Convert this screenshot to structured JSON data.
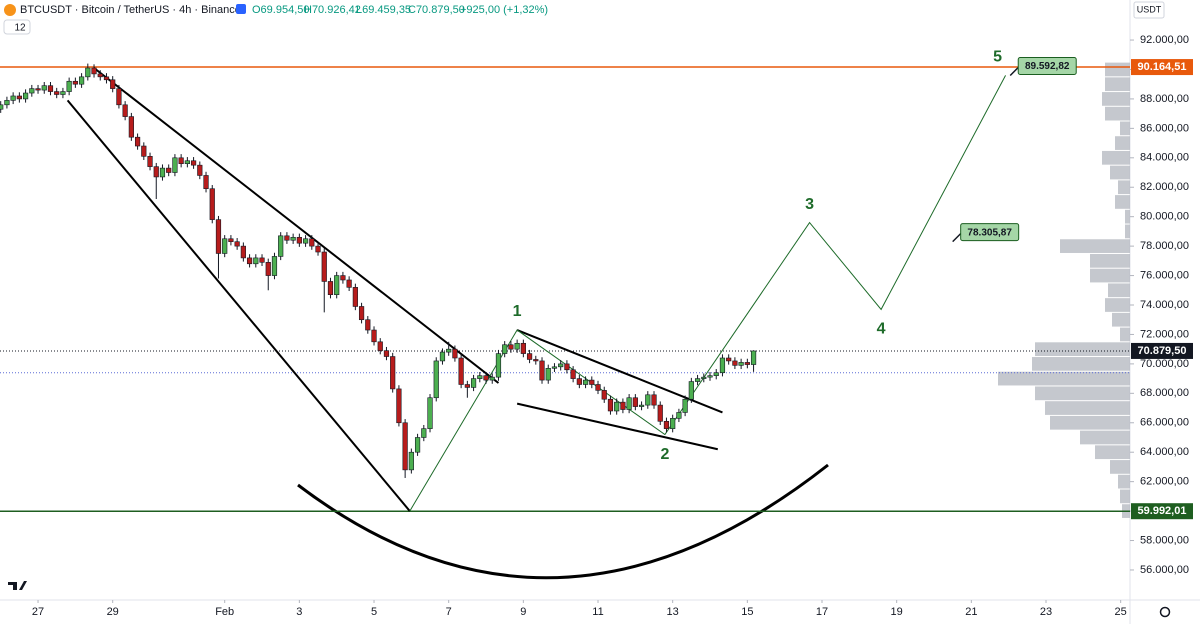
{
  "chart_data": {
    "type": "candlestick",
    "title": "BTCUSDT · Bitcoin / TetherUS · 4h · Binance",
    "ohlc_labels": [
      "O69.954,50",
      "H70.926,42",
      "L69.459,35",
      "C70.879,50"
    ],
    "change_label": "+925,00 (+1,32%)",
    "badge": "12",
    "currency": "USDT",
    "up_color": "#4caf50",
    "down_color": "#b71c1c",
    "x": [
      0,
      4,
      8,
      12,
      16,
      20,
      24,
      28,
      32,
      36,
      40,
      44,
      48,
      52,
      56,
      60,
      64,
      68,
      72,
      76,
      80,
      84,
      88,
      92,
      96,
      100,
      104,
      108,
      112,
      116,
      120,
      124,
      128,
      132,
      136,
      140,
      144,
      148,
      152,
      156,
      160,
      164,
      168,
      172,
      176,
      180,
      184,
      188,
      192,
      196,
      200,
      204,
      208,
      212,
      216,
      220,
      224,
      228,
      232,
      236,
      240,
      244,
      248,
      252,
      256,
      260,
      264,
      268,
      272,
      276,
      280,
      284,
      288,
      292,
      296,
      300,
      304,
      308,
      312,
      316,
      320,
      324,
      328,
      332,
      336,
      340,
      344,
      348,
      352,
      356,
      360,
      364,
      368,
      372,
      376,
      380,
      384,
      388,
      392,
      396,
      400,
      404,
      408,
      412,
      416,
      420,
      424,
      428,
      432,
      436,
      440,
      444,
      448,
      452,
      456,
      460,
      464,
      468,
      472,
      476,
      480,
      484
    ],
    "open": [
      87300,
      87600,
      87900,
      88200,
      88000,
      88400,
      88700,
      88600,
      88900,
      88500,
      88300,
      88500,
      89200,
      89000,
      89500,
      90100,
      89700,
      89500,
      89300,
      88700,
      87600,
      86800,
      85400,
      84800,
      84100,
      83400,
      82700,
      83300,
      83000,
      84000,
      83600,
      83800,
      83500,
      82800,
      81900,
      79800,
      77500,
      78500,
      78300,
      78000,
      77200,
      76800,
      77200,
      76900,
      76000,
      77300,
      78700,
      78400,
      78600,
      78200,
      78500,
      78000,
      77600,
      75600,
      74700,
      76000,
      75700,
      75200,
      73900,
      73000,
      72300,
      71500,
      70900,
      70500,
      68300,
      66000,
      62800,
      64000,
      65000,
      65600,
      67700,
      70200,
      70800,
      71000,
      70400,
      68600,
      68400,
      69000,
      69200,
      68900,
      69100,
      70700,
      71300,
      71000,
      71400,
      70700,
      70300,
      70200,
      68900,
      69700,
      69800,
      70000,
      69600,
      69000,
      68600,
      68900,
      68600,
      68200,
      67600,
      66800,
      67400,
      66900,
      67700,
      67100,
      67200,
      67900,
      67200,
      66100,
      65600,
      66300,
      66700,
      67600,
      68800,
      69000,
      69100,
      69200,
      69400,
      70400,
      70200,
      69900,
      70100,
      69954.5
    ],
    "high": [
      87850,
      88150,
      88450,
      88450,
      88650,
      88950,
      88950,
      89150,
      89150,
      88750,
      88750,
      89450,
      89450,
      89750,
      90400,
      90350,
      89950,
      89750,
      89550,
      88950,
      87850,
      87050,
      85650,
      85050,
      84350,
      83650,
      83550,
      83550,
      84250,
      84250,
      84050,
      84050,
      83750,
      83050,
      82150,
      80050,
      78750,
      78750,
      78550,
      78250,
      77450,
      77450,
      77450,
      77150,
      77550,
      78950,
      78950,
      78850,
      78850,
      78750,
      78750,
      78250,
      77850,
      75850,
      76250,
      76250,
      75950,
      75450,
      74150,
      73250,
      72550,
      71750,
      71150,
      70750,
      68550,
      66250,
      64250,
      65250,
      65850,
      67950,
      70450,
      71050,
      71500,
      71250,
      70650,
      68850,
      69250,
      69450,
      69450,
      69350,
      70950,
      71550,
      71550,
      71650,
      71650,
      70950,
      70550,
      70450,
      69950,
      70050,
      70250,
      70250,
      69850,
      69250,
      69150,
      69150,
      68850,
      68450,
      67850,
      67650,
      67650,
      67950,
      67950,
      67450,
      68150,
      68150,
      67450,
      66350,
      66550,
      66950,
      67850,
      69050,
      69250,
      69350,
      69450,
      69650,
      70650,
      70650,
      70450,
      70350,
      70350,
      70926.42
    ],
    "low": [
      87050,
      87350,
      87650,
      87750,
      87750,
      88150,
      88350,
      88350,
      88250,
      88050,
      88050,
      88250,
      88750,
      88750,
      89250,
      89450,
      89250,
      89050,
      88450,
      87350,
      86550,
      85150,
      84550,
      83850,
      83150,
      81200,
      82450,
      82750,
      82750,
      83350,
      83350,
      83250,
      82550,
      81650,
      79550,
      75800,
      77250,
      78050,
      77750,
      76950,
      76550,
      76550,
      76650,
      75000,
      75750,
      77050,
      78150,
      78150,
      77950,
      77950,
      77750,
      77350,
      73500,
      74450,
      74450,
      75450,
      74950,
      73650,
      72750,
      72050,
      71250,
      70650,
      70250,
      68050,
      65750,
      62250,
      62550,
      63750,
      64750,
      65350,
      67450,
      69950,
      70550,
      70150,
      68350,
      67700,
      68150,
      68750,
      68650,
      68650,
      68850,
      70450,
      70750,
      70750,
      70450,
      70050,
      69950,
      68650,
      68650,
      69450,
      69550,
      69350,
      68750,
      68350,
      68350,
      68350,
      67950,
      67350,
      66550,
      66550,
      66650,
      66650,
      66850,
      66850,
      66950,
      66950,
      65850,
      65350,
      65350,
      66050,
      66450,
      67350,
      68550,
      68750,
      68850,
      68950,
      69150,
      69950,
      69650,
      69650,
      69700,
      69459.35
    ],
    "close": [
      87600,
      87900,
      88200,
      88000,
      88400,
      88700,
      88600,
      88900,
      88500,
      88300,
      88500,
      89200,
      89000,
      89500,
      90100,
      89700,
      89500,
      89300,
      88700,
      87600,
      86800,
      85400,
      84800,
      84100,
      83400,
      82700,
      83300,
      83000,
      84000,
      83600,
      83800,
      83500,
      82800,
      81900,
      79800,
      77500,
      78500,
      78300,
      78000,
      77200,
      76800,
      77200,
      76900,
      76000,
      77300,
      78700,
      78400,
      78600,
      78200,
      78500,
      78000,
      77600,
      75600,
      74700,
      76000,
      75700,
      75200,
      73900,
      73000,
      72300,
      71500,
      70900,
      70500,
      68300,
      66000,
      62800,
      64000,
      65000,
      65600,
      67700,
      70200,
      70800,
      71000,
      70400,
      68600,
      68400,
      69000,
      69200,
      68900,
      69100,
      70700,
      71300,
      71000,
      71400,
      70700,
      70300,
      70200,
      68900,
      69700,
      69800,
      70000,
      69600,
      69000,
      68600,
      68900,
      68600,
      68200,
      67600,
      66800,
      67400,
      66900,
      67700,
      67100,
      67200,
      67900,
      67200,
      66100,
      65600,
      66300,
      66700,
      67600,
      68800,
      69000,
      69100,
      69200,
      69400,
      70400,
      70200,
      69900,
      70100,
      69954.5,
      70879.5
    ],
    "xlim": [
      0,
      726
    ],
    "xticks": [
      {
        "value": 24,
        "label": "27"
      },
      {
        "value": 72,
        "label": "29"
      },
      {
        "value": 144,
        "label": "Feb"
      },
      {
        "value": 192,
        "label": "3"
      },
      {
        "value": 240,
        "label": "5"
      },
      {
        "value": 288,
        "label": "7"
      },
      {
        "value": 336,
        "label": "9"
      },
      {
        "value": 384,
        "label": "11"
      },
      {
        "value": 432,
        "label": "13"
      },
      {
        "value": 480,
        "label": "15"
      },
      {
        "value": 528,
        "label": "17"
      },
      {
        "value": 576,
        "label": "19"
      },
      {
        "value": 624,
        "label": "21"
      },
      {
        "value": 672,
        "label": "23"
      },
      {
        "value": 720,
        "label": "25"
      }
    ],
    "ylim": [
      53960,
      94720
    ],
    "yticks": [
      {
        "value": 56000,
        "label": "56.000,00"
      },
      {
        "value": 58000,
        "label": "58.000,00"
      },
      {
        "value": 60000,
        "label": "60.000,00"
      },
      {
        "value": 62000,
        "label": "62.000,00"
      },
      {
        "value": 64000,
        "label": "64.000,00"
      },
      {
        "value": 66000,
        "label": "66.000,00"
      },
      {
        "value": 68000,
        "label": "68.000,00"
      },
      {
        "value": 70000,
        "label": "70.000,00"
      },
      {
        "value": 72000,
        "label": "72.000,00"
      },
      {
        "value": 74000,
        "label": "74.000,00"
      },
      {
        "value": 76000,
        "label": "76.000,00"
      },
      {
        "value": 78000,
        "label": "78.000,00"
      },
      {
        "value": 80000,
        "label": "80.000,00"
      },
      {
        "value": 82000,
        "label": "82.000,00"
      },
      {
        "value": 84000,
        "label": "84.000,00"
      },
      {
        "value": 86000,
        "label": "86.000,00"
      },
      {
        "value": 88000,
        "label": "88.000,00"
      },
      {
        "value": 90000,
        "label": "90.000,00"
      },
      {
        "value": 92000,
        "label": "92.000,00"
      }
    ],
    "price_lines": [
      {
        "value": 90164.51,
        "label": "90.164,51",
        "color": "#e8590c",
        "style": "solid"
      },
      {
        "value": 70879.5,
        "label": "70.879,50",
        "color": "#131722",
        "style": "dotted"
      },
      {
        "value": 59992.01,
        "label": "59.992,01",
        "color": "#1e5e20",
        "style": "solid"
      },
      {
        "value": 69400,
        "color": "#5b6bd6",
        "style": "dotted"
      }
    ],
    "callouts": [
      {
        "x": 649,
        "value": 89592.82,
        "label": "89.592,82"
      },
      {
        "x": 612,
        "value": 78305.87,
        "label": "78.305,87"
      }
    ],
    "wave": {
      "x": [
        263,
        332,
        427,
        520,
        566,
        646
      ],
      "y": [
        60000,
        72300,
        65200,
        79600,
        73700,
        89600
      ],
      "labels": [
        "1",
        "2",
        "3",
        "4",
        "5"
      ],
      "color": "#1e6b2a"
    },
    "trendlines": [
      {
        "x": [
          60,
          320
        ],
        "y": [
          90100,
          68700
        ]
      },
      {
        "x": [
          43,
          263
        ],
        "y": [
          87900,
          60000
        ]
      },
      {
        "x": [
          332,
          464
        ],
        "y": [
          72300,
          66700
        ]
      },
      {
        "x": [
          332,
          461
        ],
        "y": [
          67300,
          64200
        ]
      }
    ],
    "volume_profile": {
      "levels": [
        60000,
        61000,
        62000,
        63000,
        64000,
        65000,
        66000,
        67000,
        68000,
        69000,
        70000,
        71000,
        72000,
        73000,
        74000,
        75000,
        76000,
        77000,
        78000,
        79000,
        80000,
        81000,
        82000,
        83000,
        84000,
        85000,
        86000,
        87000,
        88000,
        89000,
        90000
      ],
      "values": [
        8,
        10,
        12,
        20,
        35,
        50,
        80,
        85,
        95,
        132,
        98,
        95,
        10,
        18,
        25,
        22,
        40,
        40,
        70,
        5,
        5,
        15,
        12,
        20,
        28,
        15,
        10,
        25,
        28,
        25,
        25
      ],
      "color": "#b2b5be"
    }
  }
}
